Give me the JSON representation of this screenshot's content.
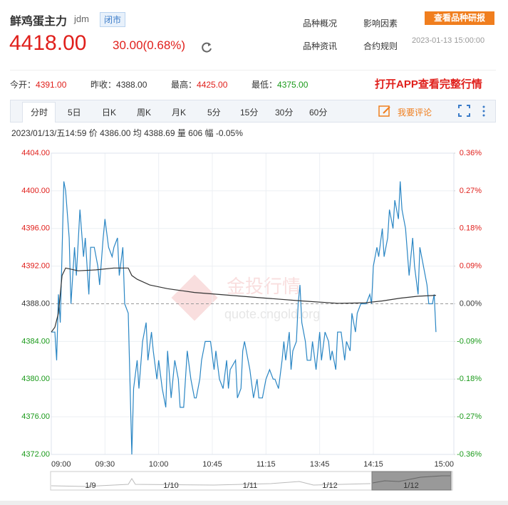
{
  "header": {
    "name": "鲜鸡蛋主力",
    "code": "jdm",
    "status": "闭市",
    "links": [
      "品种概况",
      "影响因素",
      "品种资讯",
      "合约规则"
    ],
    "report": "查看品种研报",
    "price": "4418.00",
    "change": "30.00(0.68%)",
    "time": "2023-01-13 15:00:00"
  },
  "stats": {
    "items": [
      {
        "label": "今开：",
        "value": "4391.00"
      },
      {
        "label": "昨收：",
        "value": "4388.00"
      },
      {
        "label": "最高：",
        "value": "4425.00"
      },
      {
        "label": "最低：",
        "value": "4375.00"
      }
    ],
    "app": "打开APP查看完整行情"
  },
  "tabs": {
    "items": [
      "分时",
      "5日",
      "日K",
      "周K",
      "月K",
      "5分",
      "15分",
      "30分",
      "60分"
    ],
    "comment": "我要评论"
  },
  "info": "2023/01/13/五14:59 价 4386.00 均 4388.69 量 606 幅 -0.05%",
  "watermark": {
    "brand": "金投行情",
    "url": "quote.cngold.org"
  },
  "chart_data": {
    "type": "line",
    "baseline": 4388,
    "xlim": [
      0,
      225
    ],
    "xticks": [
      {
        "value": 0,
        "label": "09:00"
      },
      {
        "value": 30,
        "label": "09:30"
      },
      {
        "value": 60,
        "label": "10:00"
      },
      {
        "value": 90,
        "label": "10:45"
      },
      {
        "value": 120,
        "label": "11:15"
      },
      {
        "value": 150,
        "label": "13:45"
      },
      {
        "value": 180,
        "label": "14:15"
      },
      {
        "value": 225,
        "label": "15:00"
      }
    ],
    "ylim": [
      4372,
      4404
    ],
    "yticks": [
      {
        "value": 4404,
        "label": "4404.00"
      },
      {
        "value": 4400,
        "label": "4400.00"
      },
      {
        "value": 4396,
        "label": "4396.00"
      },
      {
        "value": 4392,
        "label": "4392.00"
      },
      {
        "value": 4388,
        "label": "4388.00"
      },
      {
        "value": 4384,
        "label": "4384.00"
      },
      {
        "value": 4380,
        "label": "4380.00"
      },
      {
        "value": 4376,
        "label": "4376.00"
      },
      {
        "value": 4372,
        "label": "4372.00"
      }
    ],
    "y2lim": [
      -0.36,
      0.36
    ],
    "y2ticks": [
      {
        "value": 0.36,
        "label": "0.36%"
      },
      {
        "value": 0.27,
        "label": "0.27%"
      },
      {
        "value": 0.18,
        "label": "0.18%"
      },
      {
        "value": 0.09,
        "label": "0.09%"
      },
      {
        "value": 0,
        "label": "0.00%"
      },
      {
        "value": -0.09,
        "label": "-0.09%"
      },
      {
        "value": -0.18,
        "label": "-0.18%"
      },
      {
        "value": -0.27,
        "label": "-0.27%"
      },
      {
        "value": -0.36,
        "label": "-0.36%"
      }
    ],
    "grid": true,
    "series": [
      {
        "color": "#2a86c4",
        "x": [
          0,
          2,
          3,
          4,
          5,
          7,
          8,
          10,
          11,
          13,
          14,
          16,
          18,
          19,
          21,
          22,
          24,
          26,
          27,
          29,
          30,
          32,
          34,
          35,
          37,
          38,
          40,
          41,
          43,
          45,
          46,
          48,
          49,
          51,
          53,
          54,
          56,
          57,
          59,
          60,
          62,
          64,
          65,
          67,
          69,
          71,
          72,
          74,
          76,
          78,
          80,
          81,
          83,
          84,
          86,
          88,
          89,
          91,
          92,
          94,
          96,
          98,
          99,
          100,
          103,
          104,
          106,
          107,
          108,
          110,
          111,
          113,
          115,
          116,
          118,
          120,
          122,
          124,
          125,
          127,
          129,
          130,
          131,
          133,
          134,
          135,
          137,
          138,
          139,
          140,
          142,
          143,
          145,
          146,
          148,
          150,
          151,
          153,
          155,
          156,
          157,
          159,
          160,
          162,
          164,
          165,
          167,
          168,
          170,
          171,
          173,
          174,
          176,
          178,
          179,
          180,
          182,
          183,
          185,
          186,
          188,
          189,
          191,
          192,
          194,
          195,
          196,
          198,
          200,
          202,
          203,
          205,
          206,
          208,
          210,
          211,
          213,
          214,
          215
        ],
        "values": [
          4385,
          4385,
          4382,
          4389,
          4386,
          4401,
          4400,
          4395,
          4388,
          4394,
          4391,
          4398,
          4393,
          4395,
          4389,
          4394,
          4394,
          4392,
          4390,
          4395,
          4397,
          4394,
          4393,
          4394,
          4395,
          4391,
          4394,
          4388,
          4387,
          4372,
          4379,
          4382,
          4379,
          4384,
          4386,
          4382,
          4385,
          4383,
          4380,
          4382,
          4379,
          4377,
          4383,
          4378,
          4382,
          4380,
          4377,
          4377,
          4383,
          4380,
          4378,
          4378,
          4380,
          4382,
          4384,
          4384,
          4384,
          4381,
          4383,
          4380,
          4379,
          4382,
          4379,
          4381,
          4382,
          4378,
          4379,
          4383,
          4384,
          4382,
          4381,
          4378,
          4380,
          4378,
          4378,
          4380,
          4381,
          4380,
          4380,
          4379,
          4382,
          4384,
          4382,
          4385,
          4381,
          4383,
          4384,
          4388,
          4390,
          4386,
          4384,
          4382,
          4382,
          4384,
          4381,
          4385,
          4382,
          4385,
          4384,
          4382,
          4383,
          4381,
          4385,
          4385,
          4382,
          4384,
          4383,
          4387,
          4385,
          4387,
          4388,
          4388,
          4388,
          4389,
          4388,
          4392,
          4394,
          4393,
          4396,
          4393,
          4395,
          4398,
          4396,
          4399,
          4397,
          4401,
          4398,
          4396,
          4391,
          4395,
          4392,
          4389,
          4394,
          4392,
          4390,
          4388,
          4388,
          4389,
          4385
        ]
      },
      {
        "color": "#333333",
        "x": [
          0,
          2,
          4,
          6,
          8,
          15,
          25,
          35,
          43,
          45,
          48,
          55,
          65,
          80,
          100,
          120,
          140,
          160,
          175,
          185,
          195,
          205,
          215
        ],
        "values": [
          4385,
          4385.5,
          4387,
          4391,
          4391.8,
          4391.5,
          4391.6,
          4391.8,
          4391.8,
          4391,
          4390.6,
          4390,
          4389.6,
          4389.2,
          4388.9,
          4388.6,
          4388.3,
          4388.05,
          4388.1,
          4388.3,
          4388.6,
          4388.8,
          4388.9
        ]
      }
    ]
  },
  "navigator": {
    "dates": [
      "1/9",
      "1/10",
      "1/11",
      "1/12",
      "1/12"
    ]
  }
}
